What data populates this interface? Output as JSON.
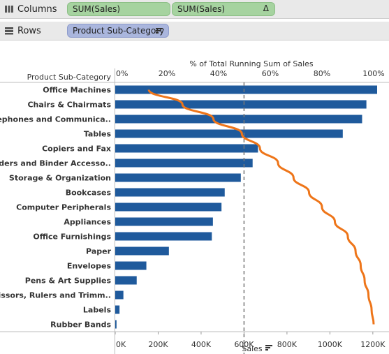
{
  "shelves": {
    "columns": {
      "label": "Columns",
      "pills": [
        "SUM(Sales)",
        "SUM(Sales)"
      ],
      "delta": "Δ"
    },
    "rows": {
      "label": "Rows",
      "pills": [
        "Product Sub-Category"
      ]
    }
  },
  "colors": {
    "bar": "#1f5a9c",
    "line": "#ee7519",
    "shelf": "#e9e9e9",
    "pill_green": "#a6d3a0",
    "pill_blue": "#aab6dd"
  },
  "chart_data": {
    "type": "bar",
    "row_header": "Product Sub-Category",
    "top_axis_title": "% of Total Running Sum of Sales",
    "top_ticks": [
      "0%",
      "20%",
      "40%",
      "60%",
      "80%",
      "100%"
    ],
    "bottom_axis_title": "Sales",
    "bottom_ticks": [
      "0K",
      "200K",
      "400K",
      "600K",
      "800K",
      "1000K",
      "1200K"
    ],
    "xlim_sales": [
      0,
      1220000
    ],
    "categories": [
      "Office Machines",
      "Chairs & Chairmats",
      "Telephones and Communica..",
      "Tables",
      "Copiers and Fax",
      "Binders and Binder Accesso..",
      "Storage & Organization",
      "Bookcases",
      "Computer Peripherals",
      "Appliances",
      "Office Furnishings",
      "Paper",
      "Envelopes",
      "Pens & Art Supplies",
      "Scissors, Rulers and Trimm..",
      "Labels",
      "Rubber Bands"
    ],
    "series": [
      {
        "values": [
          1220000,
          1170000,
          1150000,
          1060000,
          665000,
          640000,
          585000,
          510000,
          495000,
          455000,
          450000,
          250000,
          145000,
          100000,
          38000,
          20000,
          6000
        ]
      },
      {
        "type": "line",
        "values": [
          0.13,
          0.26,
          0.38,
          0.49,
          0.56,
          0.63,
          0.69,
          0.75,
          0.8,
          0.85,
          0.9,
          0.93,
          0.95,
          0.965,
          0.98,
          0.992,
          1.0
        ]
      }
    ],
    "reference_line": {
      "sales": 600000,
      "style": "dashed"
    }
  }
}
